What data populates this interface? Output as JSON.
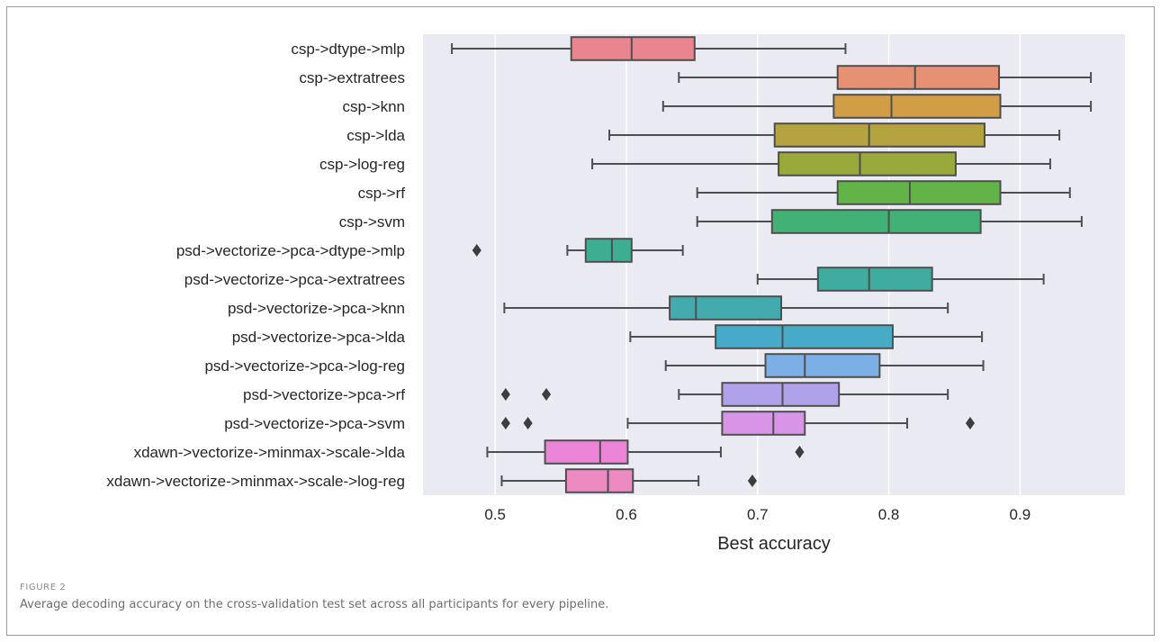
{
  "figure": {
    "label": "FIGURE 2",
    "caption": "Average decoding accuracy on the cross-validation test set across all participants for every pipeline."
  },
  "chart_data": {
    "type": "boxplot",
    "orientation": "horizontal",
    "xlabel": "Best accuracy",
    "ylabel": "",
    "xlim": [
      0.445,
      0.98
    ],
    "xticks": [
      0.5,
      0.6,
      0.7,
      0.8,
      0.9
    ],
    "grid": "vertical",
    "background": "#eaeaf2",
    "categories": [
      "csp->dtype->mlp",
      "csp->extratrees",
      "csp->knn",
      "csp->lda",
      "csp->log-reg",
      "csp->rf",
      "csp->svm",
      "psd->vectorize->pca->dtype->mlp",
      "psd->vectorize->pca->extratrees",
      "psd->vectorize->pca->knn",
      "psd->vectorize->pca->lda",
      "psd->vectorize->pca->log-reg",
      "psd->vectorize->pca->rf",
      "psd->vectorize->pca->svm",
      "xdawn->vectorize->minmax->scale->lda",
      "xdawn->vectorize->minmax->scale->log-reg"
    ],
    "boxes": [
      {
        "whislo": 0.467,
        "q1": 0.558,
        "med": 0.604,
        "q3": 0.652,
        "whishi": 0.767,
        "fliers": [],
        "color": "#e8858f"
      },
      {
        "whislo": 0.64,
        "q1": 0.761,
        "med": 0.82,
        "q3": 0.884,
        "whishi": 0.954,
        "fliers": [],
        "color": "#e69173"
      },
      {
        "whislo": 0.628,
        "q1": 0.758,
        "med": 0.802,
        "q3": 0.885,
        "whishi": 0.954,
        "fliers": [],
        "color": "#d29e45"
      },
      {
        "whislo": 0.587,
        "q1": 0.713,
        "med": 0.785,
        "q3": 0.873,
        "whishi": 0.93,
        "fliers": [],
        "color": "#b4a33f"
      },
      {
        "whislo": 0.574,
        "q1": 0.716,
        "med": 0.778,
        "q3": 0.851,
        "whishi": 0.923,
        "fliers": [],
        "color": "#99a93c"
      },
      {
        "whislo": 0.654,
        "q1": 0.761,
        "med": 0.816,
        "q3": 0.885,
        "whishi": 0.938,
        "fliers": [],
        "color": "#63b448"
      },
      {
        "whislo": 0.654,
        "q1": 0.711,
        "med": 0.8,
        "q3": 0.87,
        "whishi": 0.947,
        "fliers": [],
        "color": "#41b175"
      },
      {
        "whislo": 0.555,
        "q1": 0.569,
        "med": 0.589,
        "q3": 0.604,
        "whishi": 0.643,
        "fliers": [
          0.486
        ],
        "color": "#3eae92"
      },
      {
        "whislo": 0.7,
        "q1": 0.746,
        "med": 0.785,
        "q3": 0.833,
        "whishi": 0.918,
        "fliers": [],
        "color": "#40ac9f"
      },
      {
        "whislo": 0.507,
        "q1": 0.633,
        "med": 0.653,
        "q3": 0.718,
        "whishi": 0.845,
        "fliers": [],
        "color": "#43aaad"
      },
      {
        "whislo": 0.603,
        "q1": 0.668,
        "med": 0.719,
        "q3": 0.803,
        "whishi": 0.871,
        "fliers": [],
        "color": "#47abc7"
      },
      {
        "whislo": 0.63,
        "q1": 0.706,
        "med": 0.736,
        "q3": 0.793,
        "whishi": 0.872,
        "fliers": [],
        "color": "#7cafe6"
      },
      {
        "whislo": 0.64,
        "q1": 0.673,
        "med": 0.719,
        "q3": 0.762,
        "whishi": 0.845,
        "fliers": [
          0.508,
          0.539
        ],
        "color": "#b0a2ea"
      },
      {
        "whislo": 0.601,
        "q1": 0.673,
        "med": 0.712,
        "q3": 0.736,
        "whishi": 0.814,
        "fliers": [
          0.508,
          0.525,
          0.862
        ],
        "color": "#d895e8"
      },
      {
        "whislo": 0.494,
        "q1": 0.538,
        "med": 0.58,
        "q3": 0.601,
        "whishi": 0.672,
        "fliers": [
          0.732
        ],
        "color": "#ec84d7"
      },
      {
        "whislo": 0.505,
        "q1": 0.554,
        "med": 0.586,
        "q3": 0.605,
        "whishi": 0.655,
        "fliers": [
          0.696
        ],
        "color": "#ec8ac1"
      }
    ]
  }
}
